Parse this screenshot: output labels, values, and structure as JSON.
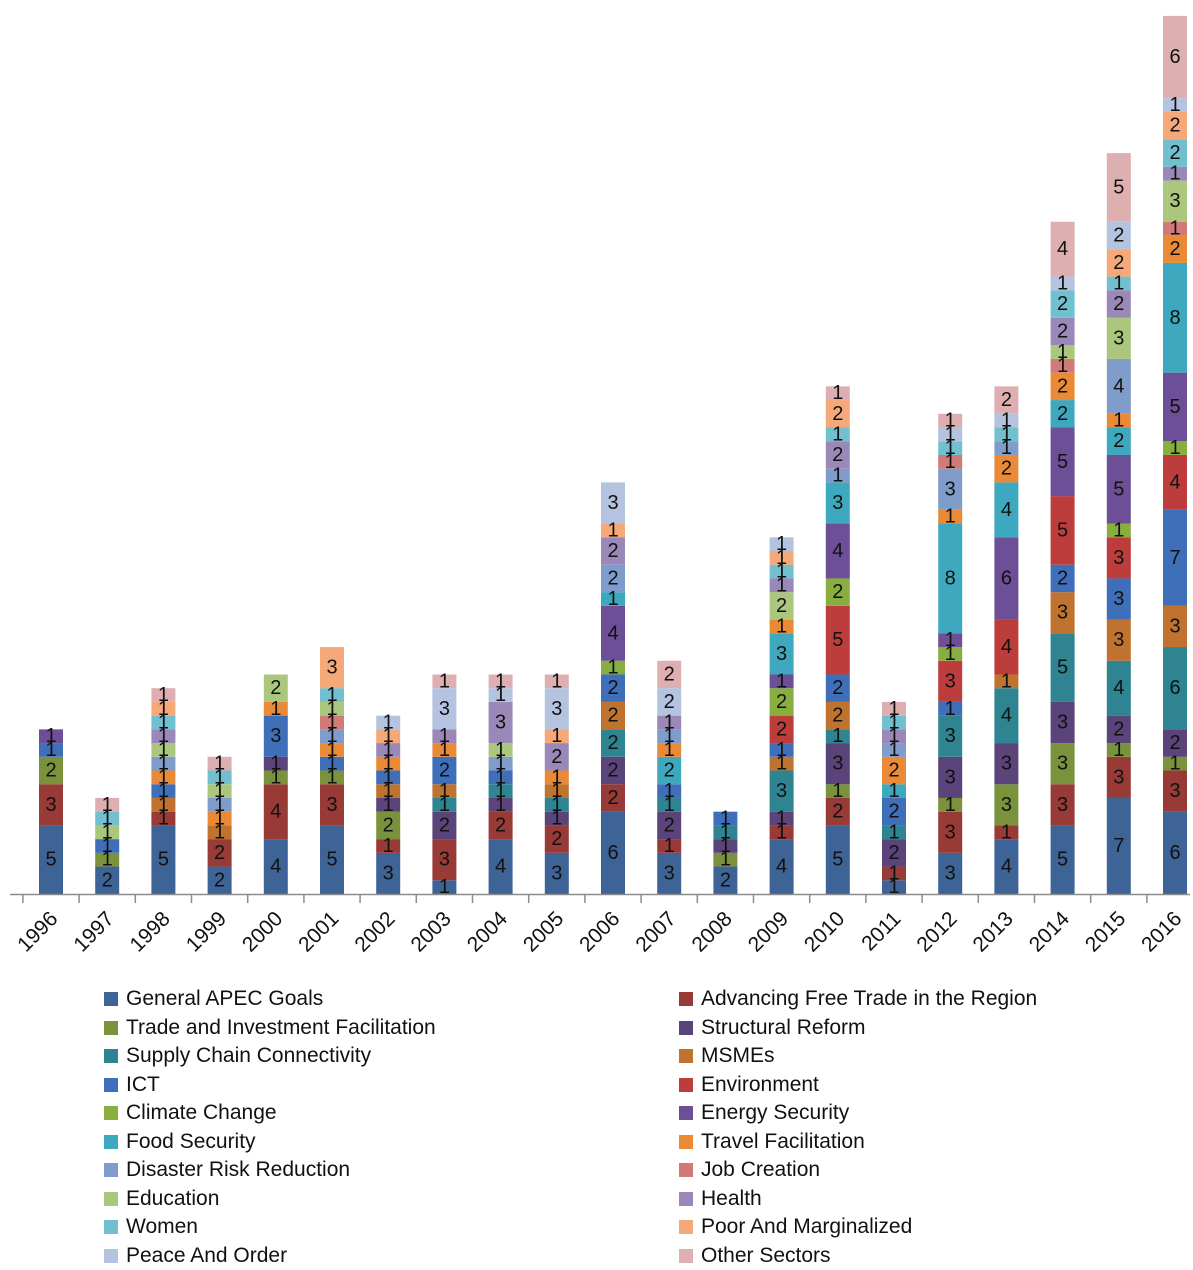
{
  "chart_data": {
    "type": "bar",
    "stacked": true,
    "title": "",
    "xlabel": "",
    "ylabel": "",
    "ylim": [
      0,
      65
    ],
    "grid": false,
    "legend_position": "bottom",
    "categories": [
      "1996",
      "1997",
      "1998",
      "1999",
      "2000",
      "2001",
      "2002",
      "2003",
      "2004",
      "2005",
      "2006",
      "2007",
      "2008",
      "2009",
      "2010",
      "2011",
      "2012",
      "2013",
      "2014",
      "2015",
      "2016"
    ],
    "series": [
      {
        "name": "General APEC Goals",
        "color": "#3E6396",
        "values": [
          5,
          2,
          5,
          2,
          4,
          5,
          3,
          1,
          4,
          3,
          6,
          3,
          2,
          4,
          5,
          1,
          3,
          4,
          5,
          7,
          6
        ]
      },
      {
        "name": "Advancing Free Trade in the Region",
        "color": "#983A36",
        "values": [
          3,
          0,
          1,
          2,
          4,
          3,
          1,
          3,
          2,
          2,
          2,
          1,
          0,
          1,
          2,
          1,
          3,
          1,
          3,
          3,
          3
        ]
      },
      {
        "name": "Trade and Investment Facilitation",
        "color": "#7A923B",
        "values": [
          2,
          1,
          0,
          0,
          1,
          1,
          2,
          0,
          0,
          0,
          0,
          0,
          1,
          0,
          1,
          0,
          1,
          3,
          3,
          1,
          1
        ]
      },
      {
        "name": "Structural Reform",
        "color": "#5A447A",
        "values": [
          0,
          0,
          0,
          0,
          1,
          0,
          1,
          2,
          1,
          1,
          2,
          2,
          1,
          1,
          3,
          2,
          3,
          3,
          3,
          2,
          2
        ]
      },
      {
        "name": "Supply Chain Connectivity",
        "color": "#2F8492",
        "values": [
          0,
          0,
          0,
          0,
          0,
          0,
          0,
          1,
          1,
          1,
          2,
          1,
          1,
          3,
          1,
          1,
          3,
          4,
          5,
          4,
          6
        ]
      },
      {
        "name": "MSMEs",
        "color": "#C0722F",
        "values": [
          0,
          0,
          1,
          1,
          0,
          0,
          1,
          1,
          0,
          1,
          2,
          0,
          0,
          1,
          2,
          0,
          0,
          1,
          3,
          3,
          3
        ]
      },
      {
        "name": "ICT",
        "color": "#3F6FB9",
        "values": [
          1,
          1,
          1,
          0,
          3,
          1,
          1,
          2,
          1,
          0,
          2,
          1,
          1,
          1,
          2,
          2,
          1,
          0,
          2,
          3,
          7
        ]
      },
      {
        "name": "Environment",
        "color": "#BD3D3C",
        "values": [
          0,
          0,
          0,
          0,
          0,
          0,
          0,
          0,
          0,
          0,
          0,
          0,
          0,
          2,
          5,
          0,
          3,
          4,
          5,
          3,
          4
        ]
      },
      {
        "name": "Climate Change",
        "color": "#88AE3F",
        "values": [
          0,
          0,
          0,
          0,
          0,
          0,
          0,
          0,
          0,
          0,
          1,
          0,
          0,
          2,
          2,
          0,
          1,
          0,
          0,
          1,
          1
        ]
      },
      {
        "name": "Energy Security",
        "color": "#6C4F97",
        "values": [
          1,
          0,
          0,
          0,
          0,
          0,
          0,
          0,
          0,
          0,
          4,
          0,
          0,
          1,
          4,
          0,
          1,
          6,
          5,
          5,
          5
        ]
      },
      {
        "name": "Food Security",
        "color": "#3EA8BE",
        "values": [
          0,
          0,
          0,
          0,
          0,
          0,
          0,
          0,
          0,
          0,
          1,
          2,
          0,
          3,
          3,
          1,
          8,
          4,
          2,
          2,
          8
        ]
      },
      {
        "name": "Travel Facilitation",
        "color": "#EB8A36",
        "values": [
          0,
          0,
          1,
          1,
          1,
          1,
          1,
          1,
          0,
          1,
          0,
          1,
          0,
          1,
          0,
          2,
          1,
          2,
          2,
          1,
          2
        ]
      },
      {
        "name": "Disaster Risk Reduction",
        "color": "#7F9CCB",
        "values": [
          0,
          0,
          1,
          1,
          0,
          1,
          0,
          0,
          1,
          0,
          2,
          1,
          0,
          0,
          1,
          1,
          3,
          1,
          0,
          4,
          0
        ]
      },
      {
        "name": "Job Creation",
        "color": "#D17A77",
        "values": [
          0,
          0,
          0,
          0,
          0,
          1,
          0,
          0,
          0,
          0,
          0,
          0,
          0,
          0,
          0,
          0,
          1,
          0,
          1,
          0,
          1
        ]
      },
      {
        "name": "Education",
        "color": "#ABC77E",
        "values": [
          0,
          1,
          1,
          1,
          2,
          1,
          0,
          0,
          1,
          0,
          0,
          0,
          0,
          2,
          0,
          0,
          0,
          0,
          1,
          3,
          3
        ]
      },
      {
        "name": "Health",
        "color": "#9A88B8",
        "values": [
          0,
          0,
          1,
          0,
          0,
          0,
          1,
          1,
          3,
          2,
          2,
          1,
          0,
          1,
          2,
          1,
          0,
          0,
          2,
          2,
          1
        ]
      },
      {
        "name": "Women",
        "color": "#72BFD0",
        "values": [
          0,
          1,
          1,
          1,
          0,
          1,
          0,
          0,
          0,
          0,
          0,
          0,
          0,
          1,
          1,
          1,
          1,
          1,
          2,
          1,
          2
        ]
      },
      {
        "name": "Poor And Marginalized",
        "color": "#F6A978",
        "values": [
          0,
          0,
          1,
          0,
          0,
          3,
          1,
          0,
          0,
          1,
          1,
          0,
          0,
          1,
          2,
          0,
          0,
          0,
          0,
          2,
          2
        ]
      },
      {
        "name": "Peace And Order",
        "color": "#B4C3E0",
        "values": [
          0,
          0,
          0,
          0,
          0,
          0,
          1,
          3,
          1,
          3,
          3,
          2,
          0,
          1,
          0,
          0,
          1,
          1,
          1,
          2,
          1
        ]
      },
      {
        "name": "Other Sectors",
        "color": "#DEAFB0",
        "values": [
          0,
          1,
          1,
          1,
          0,
          0,
          0,
          1,
          1,
          1,
          0,
          2,
          0,
          0,
          1,
          1,
          1,
          2,
          4,
          5,
          6
        ]
      }
    ]
  }
}
